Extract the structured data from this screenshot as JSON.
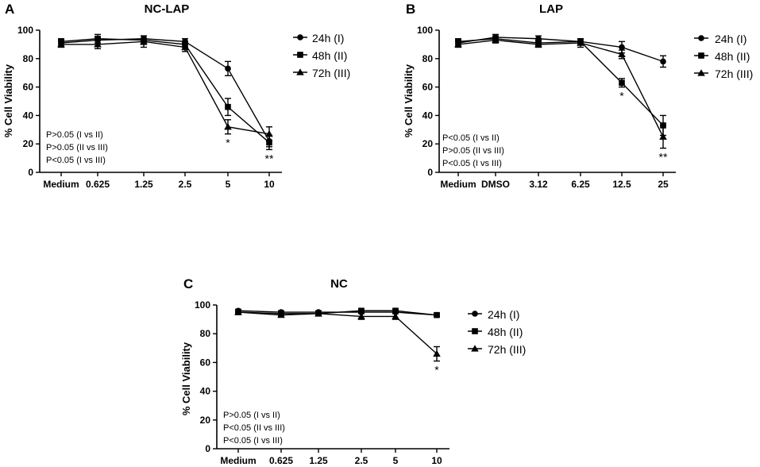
{
  "chart_data": [
    {
      "type": "line",
      "panel_label": "A",
      "title": "NC-LAP",
      "xlabel": "",
      "ylabel": "% Cell Viability",
      "ylim": [
        0,
        100
      ],
      "yticks": [
        "0",
        "20",
        "40",
        "60",
        "80",
        "100"
      ],
      "categories": [
        "Medium",
        "0.625",
        "1.25",
        "2.5",
        "5",
        "10"
      ],
      "series": [
        {
          "name": "24h (I)",
          "marker": "circle",
          "values": [
            91,
            93,
            94,
            92,
            73,
            22
          ],
          "errors": [
            2,
            2,
            2,
            2,
            5,
            4
          ]
        },
        {
          "name": "48h (II)",
          "marker": "square",
          "values": [
            92,
            94,
            93,
            90,
            46,
            21
          ],
          "errors": [
            2,
            3,
            3,
            2,
            6,
            5
          ]
        },
        {
          "name": "72h (III)",
          "marker": "triangle",
          "values": [
            90,
            90,
            92,
            88,
            32,
            27
          ],
          "errors": [
            2,
            3,
            4,
            3,
            5,
            5
          ]
        }
      ],
      "stats": [
        "P>0.05 (I vs II)",
        "P>0.05 (II vs III)",
        "P<0.05 (I vs III)"
      ],
      "annotations": [
        {
          "category": "5",
          "text": "*"
        },
        {
          "category": "10",
          "text": "**"
        }
      ]
    },
    {
      "type": "line",
      "panel_label": "B",
      "title": "LAP",
      "xlabel": "",
      "ylabel": "% Cell Viability",
      "ylim": [
        0,
        100
      ],
      "yticks": [
        "0",
        "20",
        "40",
        "60",
        "80",
        "100"
      ],
      "categories": [
        "Medium",
        "DMSO",
        "3.12",
        "6.25",
        "12.5",
        "25"
      ],
      "series": [
        {
          "name": "24h (I)",
          "marker": "circle",
          "values": [
            91,
            95,
            94,
            92,
            88,
            78
          ],
          "errors": [
            2,
            2,
            2,
            2,
            4,
            4
          ]
        },
        {
          "name": "48h (II)",
          "marker": "square",
          "values": [
            92,
            94,
            91,
            92,
            63,
            33
          ],
          "errors": [
            2,
            2,
            2,
            2,
            3,
            7
          ]
        },
        {
          "name": "72h (III)",
          "marker": "triangle",
          "values": [
            90,
            93,
            90,
            91,
            83,
            25
          ],
          "errors": [
            2,
            2,
            2,
            3,
            3,
            8
          ]
        }
      ],
      "stats": [
        "P<0.05 (I vs II)",
        "P>0.05 (II vs III)",
        "P<0.05 (I vs III)"
      ],
      "annotations": [
        {
          "category": "12.5",
          "text": "*"
        },
        {
          "category": "25",
          "text": "**"
        }
      ]
    },
    {
      "type": "line",
      "panel_label": "C",
      "title": "NC",
      "xlabel": "",
      "ylabel": "% Cell Viability",
      "ylim": [
        0,
        100
      ],
      "yticks": [
        "0",
        "20",
        "40",
        "60",
        "80",
        "100"
      ],
      "categories": [
        "Medium",
        "0.625",
        "1.25",
        "2.5",
        "5",
        "10"
      ],
      "series": [
        {
          "name": "24h (I)",
          "marker": "circle",
          "values": [
            96,
            95,
            95,
            95,
            95,
            93
          ],
          "errors": [
            1,
            1,
            1,
            1,
            1,
            1
          ]
        },
        {
          "name": "48h (II)",
          "marker": "square",
          "values": [
            95,
            94,
            94,
            96,
            96,
            93
          ],
          "errors": [
            1,
            1,
            1,
            1,
            1,
            1
          ]
        },
        {
          "name": "72h (III)",
          "marker": "triangle",
          "values": [
            95,
            93,
            94,
            92,
            92,
            66
          ],
          "errors": [
            1,
            1,
            1,
            2,
            2,
            5
          ]
        }
      ],
      "stats": [
        "P>0.05 (I vs II)",
        "P<0.05 (II vs III)",
        "P<0.05 (I vs III)"
      ],
      "annotations": [
        {
          "category": "10",
          "text": "*"
        }
      ]
    }
  ]
}
